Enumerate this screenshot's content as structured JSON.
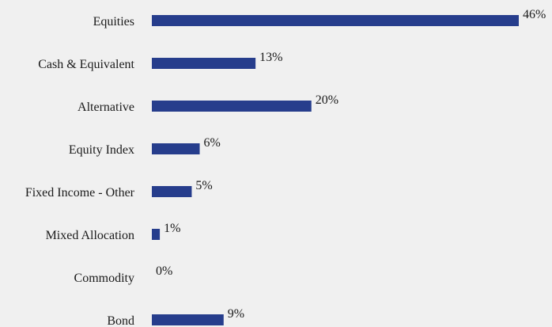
{
  "colors": {
    "background": "#f0f0f0",
    "bar": "#263d8c",
    "text": "#1a1a1a"
  },
  "chart_data": {
    "type": "bar",
    "orientation": "horizontal",
    "categories": [
      "Equities",
      "Cash & Equivalent",
      "Alternative",
      "Equity Index",
      "Fixed Income - Other",
      "Mixed Allocation",
      "Commodity",
      "Bond"
    ],
    "values": [
      46,
      13,
      20,
      6,
      5,
      1,
      0,
      9
    ],
    "value_labels": [
      "46%",
      "13%",
      "20%",
      "6%",
      "5%",
      "1%",
      "0%",
      "9%"
    ],
    "title": "",
    "xlabel": "",
    "ylabel": "",
    "xlim": [
      0,
      46
    ],
    "grid": false,
    "legend": "none"
  }
}
